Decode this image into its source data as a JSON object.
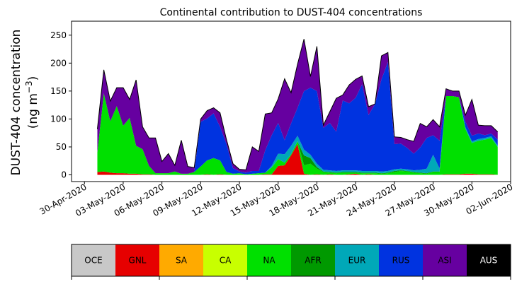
{
  "chart_data": {
    "type": "area",
    "title": "Continental contribution to DUST-404 concentrations",
    "ylabel_line1": "DUST-404 concentration",
    "ylabel_line2": "(ng m",
    "ylabel_sup": "−3",
    "ylabel_close": ")",
    "ylim": [
      -12,
      275
    ],
    "yticks": [
      0,
      50,
      100,
      150,
      200,
      250
    ],
    "xlim_days": [
      -1,
      33
    ],
    "xticks": [
      {
        "day": 0,
        "label": "30-Apr-2020"
      },
      {
        "day": 3,
        "label": "03-May-2020"
      },
      {
        "day": 6,
        "label": "06-May-2020"
      },
      {
        "day": 9,
        "label": "09-May-2020"
      },
      {
        "day": 12,
        "label": "12-May-2020"
      },
      {
        "day": 15,
        "label": "15-May-2020"
      },
      {
        "day": 18,
        "label": "18-May-2020"
      },
      {
        "day": 21,
        "label": "21-May-2020"
      },
      {
        "day": 24,
        "label": "24-May-2020"
      },
      {
        "day": 27,
        "label": "27-May-2020"
      },
      {
        "day": 30,
        "label": "30-May-2020"
      },
      {
        "day": 33,
        "label": "02-Jun-2020"
      }
    ],
    "x_days": [
      1.0,
      1.5,
      2.0,
      2.5,
      3.0,
      3.5,
      4.0,
      4.5,
      5.0,
      5.5,
      6.0,
      6.5,
      7.0,
      7.5,
      8.0,
      8.5,
      9.0,
      9.5,
      10.0,
      10.5,
      11.0,
      11.5,
      12.0,
      12.5,
      13.0,
      13.5,
      14.0,
      14.5,
      15.0,
      15.5,
      16.0,
      16.5,
      17.0,
      17.5,
      18.0,
      18.5,
      19.0,
      19.5,
      20.0,
      20.5,
      21.0,
      21.5,
      22.0,
      22.5,
      23.0,
      23.5,
      24.0,
      24.5,
      25.0,
      25.5,
      26.0,
      26.5,
      27.0,
      27.5,
      28.0,
      28.5,
      29.0,
      29.5,
      30.0,
      30.5,
      31.0,
      31.5,
      32.0
    ],
    "series": [
      {
        "name": "OCE",
        "color": "#c8c8c8",
        "values": [
          0,
          0,
          0,
          0,
          0,
          0,
          0,
          0,
          0,
          0,
          0,
          0,
          0,
          0,
          0,
          0,
          0,
          0,
          0,
          0,
          0,
          0,
          0,
          0,
          0,
          0,
          0,
          0,
          0,
          0,
          0,
          0,
          0,
          0,
          0,
          0,
          0,
          0,
          0,
          0,
          0,
          0,
          0,
          0,
          0,
          0,
          0,
          0,
          0,
          0,
          0,
          0,
          0,
          0,
          0,
          0,
          0,
          0,
          0,
          0,
          0,
          0,
          0
        ]
      },
      {
        "name": "GNL",
        "color": "#e60000",
        "values": [
          5,
          6,
          4,
          3,
          3,
          2,
          2,
          1,
          1,
          0,
          0,
          0,
          0,
          0,
          0,
          0,
          0,
          1,
          0,
          1,
          0,
          0,
          0,
          0,
          0,
          0,
          1,
          1,
          16,
          17,
          35,
          55,
          2,
          0,
          1,
          0,
          1,
          0,
          0,
          1,
          2,
          0,
          1,
          0,
          0,
          0,
          0,
          0,
          0,
          0,
          0,
          0,
          0,
          0,
          1,
          1,
          1,
          2,
          2,
          1,
          1,
          1,
          0
        ]
      },
      {
        "name": "SA",
        "color": "#ffaa00",
        "values": [
          0,
          0,
          0,
          0,
          0,
          0,
          0,
          0,
          0,
          0,
          0,
          0,
          0,
          0,
          0,
          0,
          0,
          0,
          0,
          0,
          0,
          0,
          0,
          0,
          0,
          0,
          0,
          0,
          0,
          0,
          0,
          0,
          0,
          0,
          0,
          0,
          0,
          0,
          0,
          0,
          0,
          0,
          0,
          0,
          0,
          0,
          0,
          0,
          0,
          0,
          0,
          0,
          0,
          0,
          0,
          0,
          0,
          0,
          0,
          0,
          0,
          0,
          0
        ]
      },
      {
        "name": "CA",
        "color": "#c8ff00",
        "values": [
          0,
          0,
          0,
          0,
          0,
          0,
          0,
          0,
          0,
          0,
          0,
          0,
          0,
          0,
          0,
          0,
          0,
          0,
          0,
          0,
          0,
          0,
          0,
          0,
          0,
          0,
          0,
          0,
          0,
          0,
          0,
          0,
          0,
          0,
          0,
          0,
          0,
          0,
          0,
          0,
          0,
          0,
          0,
          0,
          0,
          0,
          0,
          0,
          0,
          0,
          0,
          0,
          0,
          0,
          0,
          0,
          0,
          0,
          0,
          0,
          0,
          0,
          0
        ]
      },
      {
        "name": "NA",
        "color": "#00e000",
        "values": [
          35,
          140,
          92,
          120,
          85,
          100,
          50,
          45,
          15,
          3,
          3,
          3,
          6,
          2,
          2,
          5,
          15,
          25,
          30,
          25,
          5,
          2,
          3,
          1,
          2,
          3,
          3,
          12,
          12,
          5,
          2,
          5,
          15,
          20,
          10,
          5,
          3,
          3,
          4,
          3,
          2,
          3,
          2,
          3,
          2,
          3,
          5,
          7,
          6,
          4,
          3,
          2,
          5,
          5,
          140,
          140,
          138,
          80,
          55,
          60,
          62,
          65,
          50
        ]
      },
      {
        "name": "AFR",
        "color": "#009900",
        "values": [
          0,
          0,
          0,
          0,
          0,
          0,
          0,
          0,
          0,
          0,
          0,
          0,
          0,
          0,
          0,
          0,
          0,
          0,
          0,
          0,
          0,
          0,
          0,
          0,
          0,
          0,
          0,
          0,
          0,
          0,
          0,
          0,
          18,
          10,
          3,
          1,
          1,
          1,
          1,
          1,
          1,
          1,
          1,
          1,
          1,
          1,
          2,
          1,
          1,
          1,
          1,
          1,
          1,
          1,
          0,
          0,
          0,
          0,
          0,
          0,
          0,
          0,
          0
        ]
      },
      {
        "name": "EUR",
        "color": "#00a8b8",
        "values": [
          0,
          0,
          0,
          0,
          0,
          0,
          0,
          0,
          0,
          0,
          0,
          0,
          0,
          0,
          0,
          0,
          0,
          0,
          0,
          0,
          0,
          0,
          0,
          0,
          0,
          0,
          0,
          3,
          10,
          15,
          15,
          10,
          10,
          6,
          6,
          3,
          3,
          3,
          3,
          3,
          3,
          3,
          3,
          3,
          3,
          3,
          3,
          3,
          3,
          3,
          5,
          8,
          30,
          5,
          0,
          0,
          0,
          3,
          3,
          3,
          3,
          3,
          3
        ]
      },
      {
        "name": "RUS",
        "color": "#0033e0",
        "values": [
          0,
          0,
          0,
          0,
          0,
          0,
          0,
          0,
          0,
          0,
          0,
          0,
          0,
          0,
          0,
          0,
          80,
          75,
          80,
          60,
          50,
          10,
          3,
          3,
          5,
          4,
          40,
          55,
          55,
          25,
          40,
          50,
          105,
          120,
          130,
          75,
          85,
          70,
          125,
          120,
          130,
          155,
          100,
          120,
          165,
          195,
          45,
          45,
          38,
          30,
          40,
          55,
          35,
          50,
          0,
          0,
          0,
          10,
          10,
          10,
          5,
          5,
          10
        ]
      },
      {
        "name": "ASI",
        "color": "#6600a0",
        "values": [
          42,
          42,
          36,
          33,
          68,
          33,
          118,
          40,
          50,
          63,
          21,
          35,
          11,
          60,
          13,
          8,
          5,
          14,
          10,
          25,
          8,
          8,
          4,
          5,
          43,
          35,
          65,
          40,
          43,
          110,
          55,
          78,
          93,
          20,
          80,
          5,
          20,
          60,
          10,
          33,
          33,
          15,
          15,
          0,
          42,
          17,
          13,
          11,
          15,
          22,
          43,
          20,
          28,
          25,
          13,
          9,
          11,
          12,
          65,
          15,
          17,
          14,
          14
        ]
      },
      {
        "name": "AUS",
        "color": "#000000",
        "values": [
          0,
          0,
          0,
          0,
          0,
          0,
          0,
          0,
          0,
          0,
          0,
          0,
          0,
          0,
          0,
          0,
          0,
          0,
          0,
          0,
          0,
          0,
          0,
          0,
          0,
          0,
          0,
          0,
          0,
          0,
          0,
          0,
          0,
          0,
          0,
          0,
          0,
          0,
          0,
          0,
          0,
          0,
          0,
          0,
          0,
          0,
          0,
          0,
          0,
          0,
          0,
          0,
          0,
          0,
          0,
          0,
          0,
          0,
          0,
          0,
          0,
          0,
          0
        ]
      }
    ],
    "legend": [
      {
        "label": "OCE",
        "color": "#c8c8c8",
        "text_color": "#000000"
      },
      {
        "label": "GNL",
        "color": "#e60000",
        "text_color": "#000000"
      },
      {
        "label": "SA",
        "color": "#ffaa00",
        "text_color": "#000000"
      },
      {
        "label": "CA",
        "color": "#c8ff00",
        "text_color": "#000000"
      },
      {
        "label": "NA",
        "color": "#00e000",
        "text_color": "#000000"
      },
      {
        "label": "AFR",
        "color": "#009900",
        "text_color": "#000000"
      },
      {
        "label": "EUR",
        "color": "#00a8b8",
        "text_color": "#000000"
      },
      {
        "label": "RUS",
        "color": "#0033e0",
        "text_color": "#000000"
      },
      {
        "label": "ASI",
        "color": "#6600a0",
        "text_color": "#000000"
      },
      {
        "label": "AUS",
        "color": "#000000",
        "text_color": "#ffffff"
      }
    ],
    "legend_placement": "bottom",
    "grid": false
  }
}
